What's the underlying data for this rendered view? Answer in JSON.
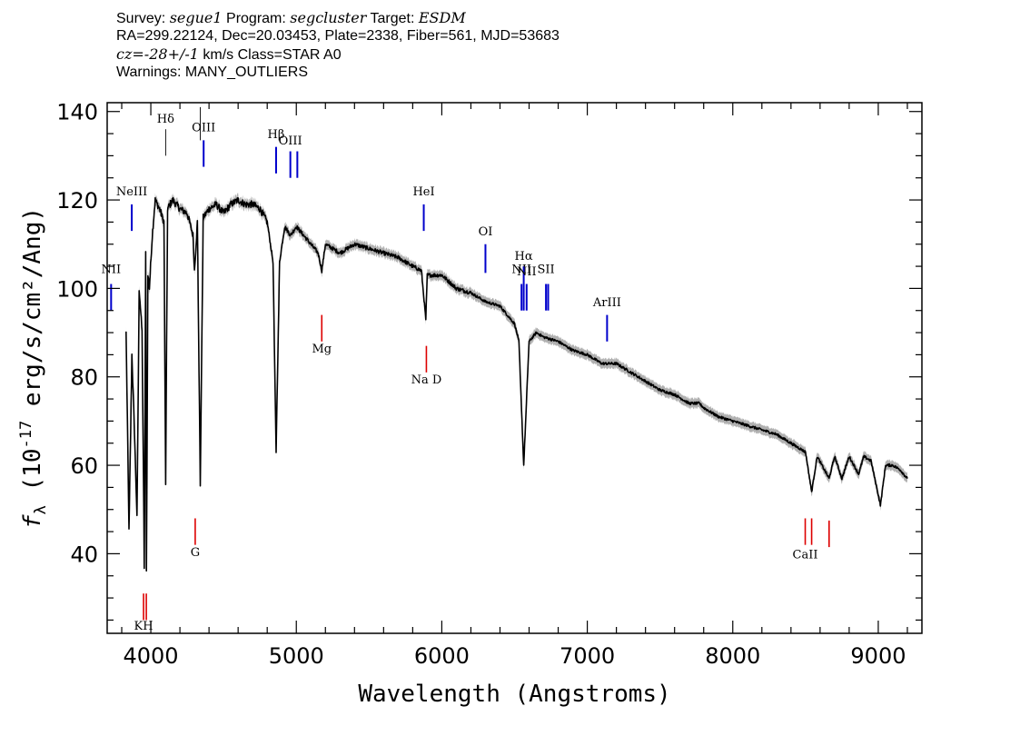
{
  "header": {
    "survey_label": "Survey:",
    "survey": "segue1",
    "program_label": "Program:",
    "program": "segcluster",
    "target_label": "Target:",
    "target": "ESDM",
    "line2": "RA=299.22124, Dec=20.03453, Plate=2338, Fiber=561, MJD=53683",
    "cz_label": "cz=",
    "cz_value": "-28+/-1",
    "cz_rest": " km/s Class=STAR A0",
    "warnings": "Warnings: MANY_OUTLIERS"
  },
  "chart_data": {
    "type": "line",
    "xlabel": "Wavelength (Angstroms)",
    "ylabel": "f_λ (10^-17 erg/s/cm²/Ang)",
    "xlim": [
      3700,
      9300
    ],
    "ylim": [
      22,
      142
    ],
    "x_ticks": [
      4000,
      5000,
      6000,
      7000,
      8000,
      9000
    ],
    "y_ticks": [
      40,
      60,
      80,
      100,
      120,
      140
    ],
    "grid": false,
    "colors": {
      "spectrum": "#000000",
      "error_band": "#b0b0b0",
      "emission": "#0000cc",
      "absorption": "#dd0000"
    },
    "spectrum_keypoints": [
      [
        3830,
        90
      ],
      [
        3850,
        45
      ],
      [
        3870,
        85
      ],
      [
        3890,
        65
      ],
      [
        3905,
        48
      ],
      [
        3920,
        100
      ],
      [
        3940,
        90
      ],
      [
        3955,
        37
      ],
      [
        3965,
        108
      ],
      [
        3970,
        36
      ],
      [
        3980,
        103
      ],
      [
        3990,
        100
      ],
      [
        4010,
        112
      ],
      [
        4030,
        120
      ],
      [
        4060,
        118
      ],
      [
        4090,
        115
      ],
      [
        4102,
        56
      ],
      [
        4115,
        118
      ],
      [
        4150,
        120
      ],
      [
        4200,
        118
      ],
      [
        4250,
        117
      ],
      [
        4290,
        112
      ],
      [
        4300,
        104
      ],
      [
        4320,
        115
      ],
      [
        4340,
        56
      ],
      [
        4360,
        116
      ],
      [
        4400,
        118
      ],
      [
        4450,
        119
      ],
      [
        4500,
        117
      ],
      [
        4550,
        119
      ],
      [
        4600,
        120
      ],
      [
        4650,
        119
      ],
      [
        4700,
        119
      ],
      [
        4750,
        118
      ],
      [
        4800,
        115
      ],
      [
        4840,
        106
      ],
      [
        4861,
        63
      ],
      [
        4885,
        106
      ],
      [
        4920,
        114
      ],
      [
        4960,
        112
      ],
      [
        5000,
        114
      ],
      [
        5050,
        112
      ],
      [
        5100,
        110
      ],
      [
        5150,
        108
      ],
      [
        5175,
        104
      ],
      [
        5200,
        110
      ],
      [
        5300,
        108
      ],
      [
        5400,
        110
      ],
      [
        5500,
        109
      ],
      [
        5600,
        108
      ],
      [
        5700,
        107
      ],
      [
        5800,
        105
      ],
      [
        5860,
        104
      ],
      [
        5890,
        93
      ],
      [
        5900,
        103
      ],
      [
        6000,
        103
      ],
      [
        6100,
        100
      ],
      [
        6200,
        99
      ],
      [
        6300,
        97
      ],
      [
        6400,
        96
      ],
      [
        6450,
        94
      ],
      [
        6500,
        92
      ],
      [
        6530,
        88
      ],
      [
        6563,
        60
      ],
      [
        6600,
        88
      ],
      [
        6650,
        90
      ],
      [
        6700,
        89
      ],
      [
        6800,
        88
      ],
      [
        6900,
        86
      ],
      [
        7000,
        85
      ],
      [
        7100,
        83
      ],
      [
        7200,
        83
      ],
      [
        7300,
        81
      ],
      [
        7400,
        79
      ],
      [
        7500,
        77
      ],
      [
        7600,
        76
      ],
      [
        7700,
        74
      ],
      [
        7770,
        74
      ],
      [
        7800,
        73
      ],
      [
        7900,
        71
      ],
      [
        8000,
        70
      ],
      [
        8100,
        69
      ],
      [
        8200,
        68
      ],
      [
        8300,
        67
      ],
      [
        8400,
        65
      ],
      [
        8500,
        63
      ],
      [
        8542,
        54
      ],
      [
        8580,
        62
      ],
      [
        8662,
        57
      ],
      [
        8700,
        62
      ],
      [
        8750,
        57
      ],
      [
        8800,
        62
      ],
      [
        8865,
        58
      ],
      [
        8900,
        62
      ],
      [
        8950,
        61
      ],
      [
        9015,
        51
      ],
      [
        9050,
        60
      ],
      [
        9100,
        60
      ],
      [
        9150,
        59
      ],
      [
        9200,
        57
      ]
    ],
    "emission_lines": [
      {
        "label": "NII",
        "x": 3727,
        "y": [
          95,
          101
        ],
        "label_y": 103.5
      },
      {
        "label": "NeIII",
        "x": 3869,
        "y": [
          113,
          119
        ],
        "label_y": 121
      },
      {
        "label": "OIII",
        "x": 4363,
        "y": [
          127.5,
          133.5
        ],
        "label_y": 135.5
      },
      {
        "label": "Hβ",
        "x": 4861,
        "y": [
          126,
          132
        ],
        "label_y": 134
      },
      {
        "label": "OIII",
        "x": 4959,
        "y": [
          125,
          131
        ],
        "label_y": 132.5
      },
      {
        "label": "OIII",
        "x": 5007,
        "y": [
          125,
          131
        ],
        "label_y": -1
      },
      {
        "label": "HeI",
        "x": 5876,
        "y": [
          113,
          119
        ],
        "label_y": 121
      },
      {
        "label": "OI",
        "x": 6300,
        "y": [
          103.5,
          110
        ],
        "label_y": 112
      },
      {
        "label": "NII",
        "x": 6548,
        "y": [
          95,
          101
        ],
        "label_y": 103.5
      },
      {
        "label": "Hα",
        "x": 6563,
        "y": [
          95,
          105
        ],
        "label_y": 106.5
      },
      {
        "label": "NII",
        "x": 6583,
        "y": [
          95,
          101
        ],
        "label_y": 103
      },
      {
        "label": "SII",
        "x": 6716,
        "y": [
          95,
          101
        ],
        "label_y": 103.5
      },
      {
        "label": "SII",
        "x": 6731,
        "y": [
          95,
          101
        ],
        "label_y": -1
      },
      {
        "label": "ArIII",
        "x": 7136,
        "y": [
          88,
          94
        ],
        "label_y": 96
      }
    ],
    "thin_marks": [
      {
        "label": "Hδ",
        "x": 4102,
        "y": [
          130,
          136
        ],
        "label_y": 137.5
      },
      {
        "label": "",
        "x": 4340,
        "y": [
          133.5,
          141
        ],
        "label_y": -1
      }
    ],
    "absorption_lines": [
      {
        "label": "KH",
        "x": 3950,
        "y": [
          25,
          31
        ],
        "label_y": 22.8
      },
      {
        "label": "",
        "x": 3969,
        "y": [
          25,
          31
        ],
        "label_y": -1
      },
      {
        "label": "G",
        "x": 4305,
        "y": [
          42,
          48
        ],
        "label_y": 39.5
      },
      {
        "label": "Mg",
        "x": 5175,
        "y": [
          88,
          94
        ],
        "label_y": 85.5
      },
      {
        "label": "Na D",
        "x": 5894,
        "y": [
          81,
          87
        ],
        "label_y": 78.5
      },
      {
        "label": "CaII",
        "x": 8498,
        "y": [
          42,
          48
        ],
        "label_y": 39
      },
      {
        "label": "",
        "x": 8542,
        "y": [
          42,
          48
        ],
        "label_y": -1
      },
      {
        "label": "",
        "x": 8662,
        "y": [
          41.5,
          47.5
        ],
        "label_y": -1
      }
    ]
  }
}
